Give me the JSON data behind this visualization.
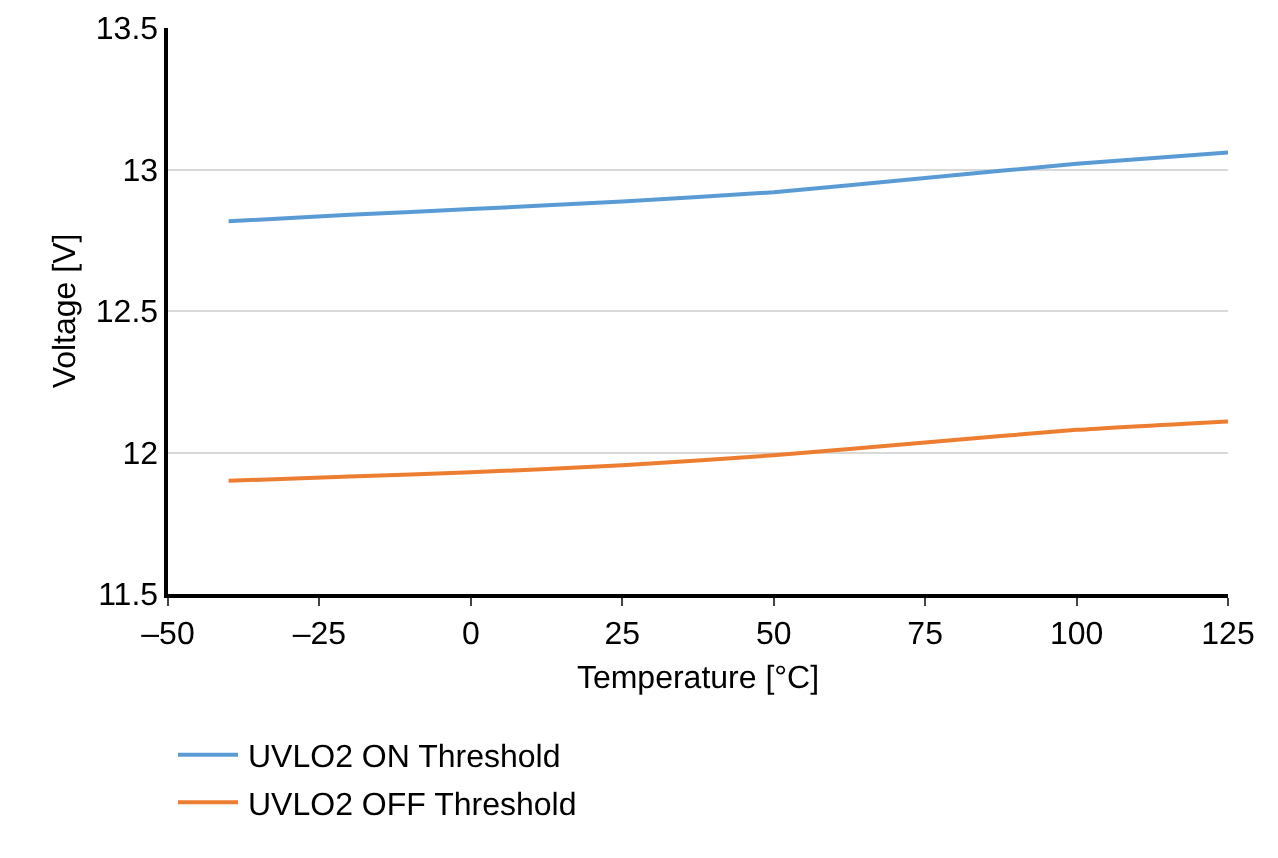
{
  "chart_data": {
    "type": "line",
    "xlabel": "Temperature [°C]",
    "ylabel": "Voltage [V]",
    "x": [
      -40,
      -20,
      0,
      25,
      50,
      75,
      100,
      125
    ],
    "series": [
      {
        "name": "UVLO2 ON Threshold",
        "color": "#5b9bd5",
        "values": [
          12.817,
          12.84,
          12.86,
          12.887,
          12.92,
          12.97,
          13.02,
          13.06
        ]
      },
      {
        "name": "UVLO2 OFF Threshold",
        "color": "#ed7d31",
        "values": [
          11.9,
          11.915,
          11.93,
          11.955,
          11.99,
          12.035,
          12.08,
          12.11
        ]
      }
    ],
    "xlim": [
      -50,
      125
    ],
    "xticks": [
      {
        "value": -50,
        "label": "–50"
      },
      {
        "value": -25,
        "label": "–25"
      },
      0,
      25,
      50,
      75,
      100,
      125
    ],
    "ylim": [
      11.5,
      13.5
    ],
    "yticks": [
      11.5,
      12,
      12.5,
      13,
      13.5
    ],
    "grid": "y",
    "legend": "bottom left",
    "marker": "none",
    "line_style": "solid"
  }
}
